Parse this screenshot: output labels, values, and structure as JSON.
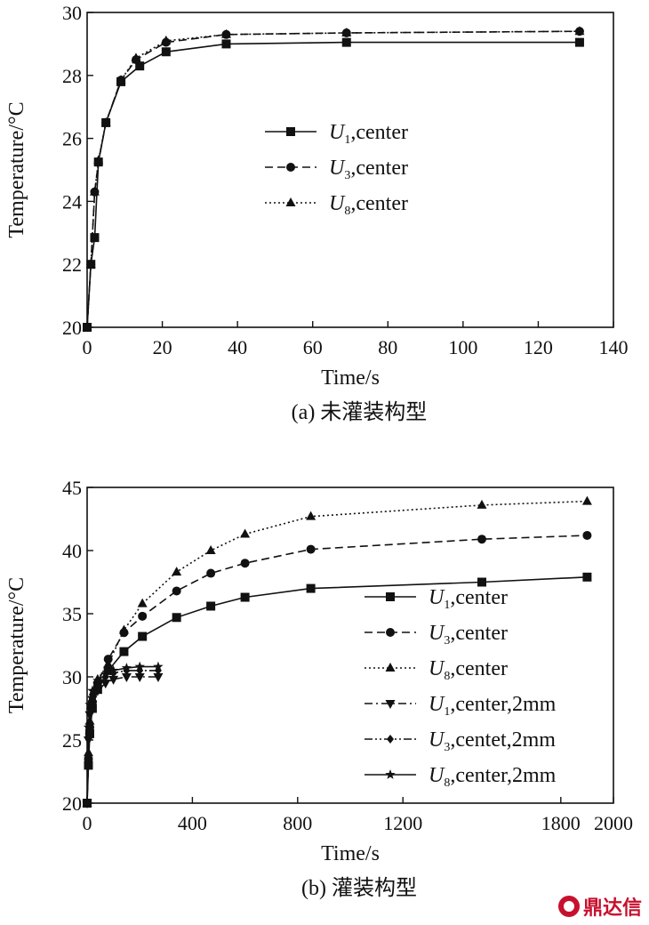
{
  "chart_data": [
    {
      "type": "line",
      "id": "a",
      "caption": "(a) 未灌装构型",
      "xlabel": "Time/s",
      "ylabel": "Temperature/°C",
      "xlim": [
        0,
        140
      ],
      "ylim": [
        20,
        30
      ],
      "xticks": [
        0,
        20,
        40,
        60,
        80,
        100,
        120,
        140
      ],
      "yticks": [
        20,
        22,
        24,
        26,
        28,
        30
      ],
      "legend_position": "center",
      "series": [
        {
          "name_main": "U",
          "name_sub": "1",
          "name_rest": ",center",
          "marker": "square",
          "dash": "solid",
          "x": [
            0,
            1,
            2,
            3,
            5,
            9,
            14,
            21,
            37,
            69,
            131
          ],
          "y": [
            20,
            22.0,
            22.85,
            25.25,
            26.5,
            27.8,
            28.3,
            28.75,
            29.0,
            29.05,
            29.05
          ]
        },
        {
          "name_main": "U",
          "name_sub": "3",
          "name_rest": ",center",
          "marker": "circle",
          "dash": "dashed",
          "x": [
            0,
            1,
            2,
            3,
            5,
            9,
            13,
            21,
            37,
            69,
            131
          ],
          "y": [
            20,
            22.0,
            24.3,
            25.25,
            26.5,
            27.85,
            28.5,
            29.05,
            29.3,
            29.35,
            29.4
          ]
        },
        {
          "name_main": "U",
          "name_sub": "8",
          "name_rest": ",center",
          "marker": "triangle",
          "dash": "dotted",
          "x": [
            0,
            1,
            2,
            3,
            5,
            9,
            13,
            21,
            37,
            69,
            131
          ],
          "y": [
            20,
            22.0,
            24.3,
            25.3,
            26.5,
            27.85,
            28.55,
            29.1,
            29.3,
            29.35,
            29.4
          ]
        }
      ]
    },
    {
      "type": "line",
      "id": "b",
      "caption": "(b) 灌装构型",
      "xlabel": "Time/s",
      "ylabel": "Temperature/°C",
      "xlim": [
        0,
        2000
      ],
      "ylim": [
        20,
        45
      ],
      "xticks": [
        0,
        400,
        800,
        1200,
        1800,
        2000
      ],
      "yticks": [
        20,
        25,
        30,
        35,
        40,
        45
      ],
      "legend_position": "right",
      "series": [
        {
          "name_main": "U",
          "name_sub": "1",
          "name_rest": ",center",
          "marker": "square",
          "dash": "solid",
          "x": [
            0,
            5,
            10,
            20,
            40,
            80,
            140,
            210,
            340,
            470,
            600,
            850,
            1500,
            1900
          ],
          "y": [
            20,
            23.0,
            25.5,
            27.5,
            29.0,
            30.5,
            32.0,
            33.2,
            34.7,
            35.6,
            36.3,
            37.0,
            37.5,
            37.9
          ]
        },
        {
          "name_main": "U",
          "name_sub": "3",
          "name_rest": ",center",
          "marker": "circle",
          "dash": "dashed",
          "x": [
            0,
            5,
            10,
            20,
            40,
            80,
            140,
            210,
            340,
            470,
            600,
            850,
            1500,
            1900
          ],
          "y": [
            20,
            23.5,
            26.0,
            28.0,
            29.5,
            31.4,
            33.5,
            34.8,
            36.8,
            38.2,
            39.0,
            40.1,
            40.9,
            41.2
          ]
        },
        {
          "name_main": "U",
          "name_sub": "8",
          "name_rest": ",center",
          "marker": "triangle",
          "dash": "dotted",
          "x": [
            0,
            5,
            10,
            20,
            40,
            80,
            140,
            210,
            340,
            470,
            600,
            850,
            1500,
            1900
          ],
          "y": [
            20,
            24.0,
            26.5,
            28.3,
            29.8,
            31.0,
            33.7,
            35.8,
            38.3,
            40.0,
            41.3,
            42.7,
            43.6,
            43.9
          ]
        },
        {
          "name_main": "U",
          "name_sub": "1",
          "name_rest": ",center,2mm",
          "marker": "triangle-down",
          "dash": "dashdot",
          "x": [
            0,
            5,
            10,
            20,
            40,
            70,
            100,
            150,
            200,
            270
          ],
          "y": [
            20,
            25.0,
            27.0,
            28.2,
            28.9,
            29.5,
            29.8,
            30.0,
            30.0,
            30.0
          ]
        },
        {
          "name_main": "U",
          "name_sub": "3",
          "name_rest": ",centet,2mm",
          "marker": "diamond",
          "dash": "dashdotdot",
          "x": [
            0,
            5,
            10,
            20,
            40,
            70,
            100,
            150,
            200,
            270
          ],
          "y": [
            20,
            25.5,
            27.5,
            28.6,
            29.4,
            30.0,
            30.3,
            30.5,
            30.5,
            30.5
          ]
        },
        {
          "name_main": "U",
          "name_sub": "8",
          "name_rest": ",center,2mm",
          "marker": "star",
          "dash": "solid",
          "x": [
            0,
            5,
            10,
            20,
            40,
            70,
            100,
            150,
            200,
            270
          ],
          "y": [
            20,
            26.0,
            27.8,
            28.9,
            29.7,
            30.2,
            30.5,
            30.7,
            30.8,
            30.8
          ]
        }
      ]
    }
  ],
  "watermark": "鼎达信",
  "watermark_color": "#c8102e"
}
